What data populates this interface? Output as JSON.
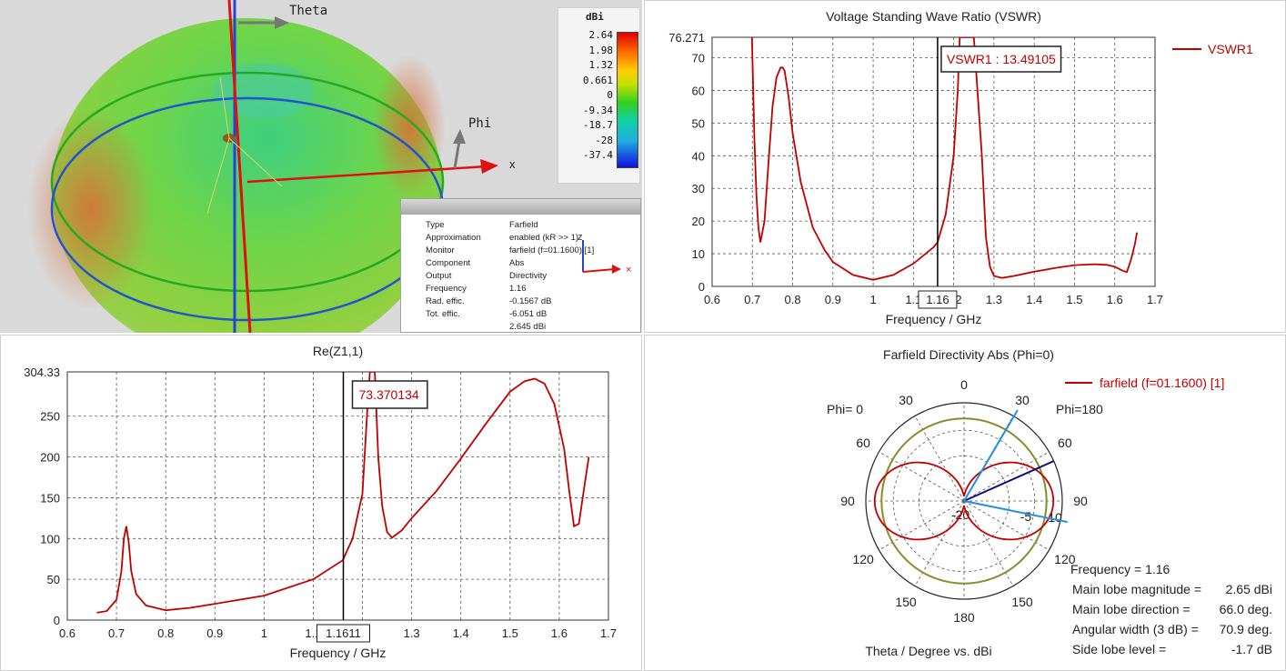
{
  "farfield_3d": {
    "axis_theta": "Theta",
    "axis_phi": "Phi",
    "axis_x": "x",
    "axis_z": "z",
    "legend_unit": "dBi",
    "legend_ticks": [
      "2.64",
      "1.98",
      "1.32",
      "0.661",
      "0",
      "-9.34",
      "-18.7",
      "-28",
      "-37.4"
    ],
    "info": [
      {
        "key": "Type",
        "value": "Farfield"
      },
      {
        "key": "Approximation",
        "value": "enabled (kR >> 1)"
      },
      {
        "key": "Monitor",
        "value": "farfield (f=01.1600) [1]"
      },
      {
        "key": "Component",
        "value": "Abs"
      },
      {
        "key": "Output",
        "value": "Directivity"
      },
      {
        "key": "Frequency",
        "value": "1.16"
      },
      {
        "key": "Rad. effic.",
        "value": "-0.1567 dB"
      },
      {
        "key": "Tot. effic.",
        "value": "-6.051 dB"
      },
      {
        "key": "",
        "value": "2.645 dBi"
      }
    ]
  },
  "chart_data": [
    {
      "type": "line",
      "title": "Voltage Standing Wave Ratio (VSWR)",
      "xlabel": "Frequency / GHz",
      "ylabel": "",
      "xlim": [
        0.6,
        1.7
      ],
      "ylim": [
        0,
        76.271
      ],
      "ymax_label": "76.271",
      "xticks": [
        0.6,
        0.7,
        0.8,
        0.9,
        1,
        1.1,
        1.2,
        1.3,
        1.4,
        1.5,
        1.6,
        1.7
      ],
      "yticks": [
        0,
        10,
        20,
        30,
        40,
        50,
        60,
        70
      ],
      "legend": "VSWR1",
      "marker_x": 1.16,
      "marker_x_label": "1.16",
      "marker_value_label": "VSWR1 : 13.49105",
      "series": [
        {
          "name": "VSWR1",
          "color": "#c00000",
          "x": [
            0.699,
            0.7,
            0.702,
            0.705,
            0.71,
            0.715,
            0.72,
            0.73,
            0.74,
            0.75,
            0.76,
            0.77,
            0.775,
            0.78,
            0.79,
            0.8,
            0.82,
            0.85,
            0.88,
            0.9,
            0.95,
            1.0,
            1.05,
            1.1,
            1.15,
            1.16,
            1.18,
            1.2,
            1.21,
            1.215,
            1.22,
            1.23,
            1.25,
            1.27,
            1.28,
            1.29,
            1.3,
            1.32,
            1.35,
            1.4,
            1.45,
            1.5,
            1.55,
            1.58,
            1.6,
            1.62,
            1.63,
            1.64,
            1.65,
            1.655
          ],
          "y": [
            76.27,
            70,
            60,
            45,
            28,
            18,
            13.5,
            20,
            38,
            55,
            64,
            67,
            67,
            66,
            58,
            47,
            32,
            18,
            11,
            7.5,
            3.5,
            2,
            3.5,
            7,
            12,
            13.5,
            22,
            40,
            60,
            76.27,
            76.27,
            76.27,
            76.27,
            40,
            15,
            6,
            3.2,
            2.6,
            3.2,
            4.5,
            5.6,
            6.5,
            6.8,
            6.6,
            6.0,
            4.8,
            4.4,
            8,
            13,
            16.5
          ]
        }
      ]
    },
    {
      "type": "line",
      "title": "Re(Z1,1)",
      "xlabel": "Frequency / GHz",
      "ylabel": "",
      "xlim": [
        0.6,
        1.7
      ],
      "ylim": [
        0,
        304.33
      ],
      "ymax_label": "304.33",
      "xticks": [
        0.6,
        0.7,
        0.8,
        0.9,
        1,
        1.1,
        1.2,
        1.3,
        1.4,
        1.5,
        1.6,
        1.7
      ],
      "yticks": [
        0,
        50,
        100,
        150,
        200,
        250
      ],
      "marker_x": 1.1611,
      "marker_x_label": "1.1611",
      "marker_value_label": "73.370134",
      "series": [
        {
          "name": "",
          "color": "#c00000",
          "x": [
            0.66,
            0.68,
            0.7,
            0.71,
            0.715,
            0.72,
            0.725,
            0.73,
            0.74,
            0.76,
            0.8,
            0.85,
            0.9,
            1.0,
            1.1,
            1.16,
            1.18,
            1.2,
            1.21,
            1.215,
            1.218,
            1.225,
            1.232,
            1.24,
            1.25,
            1.26,
            1.28,
            1.3,
            1.35,
            1.4,
            1.45,
            1.5,
            1.53,
            1.55,
            1.57,
            1.59,
            1.61,
            1.62,
            1.63,
            1.64,
            1.65,
            1.66
          ],
          "y": [
            9,
            11,
            25,
            60,
            100,
            115,
            95,
            60,
            32,
            18,
            12,
            15,
            20,
            30,
            50,
            73.4,
            100,
            155,
            260,
            304.33,
            304.33,
            304.33,
            200,
            140,
            108,
            101,
            110,
            125,
            158,
            198,
            240,
            280,
            293,
            296,
            290,
            265,
            210,
            160,
            115,
            118,
            160,
            200
          ]
        }
      ]
    },
    {
      "type": "polar",
      "title": "Farfield Directivity Abs (Phi=0)",
      "xlabel": "Theta / Degree vs. dBi",
      "legend": "farfield (f=01.1600) [1]",
      "left_label": "Phi=  0",
      "right_label": "Phi=180",
      "angle_labels": [
        "0",
        "30",
        "60",
        "90",
        "120",
        "150",
        "180",
        "150",
        "120",
        "90",
        "60",
        "30"
      ],
      "radial_labels": [
        "-20",
        "-5",
        "10"
      ],
      "stats": [
        {
          "label": "Frequency",
          "value": "1.16"
        },
        {
          "label": "Main lobe magnitude =",
          "value": "2.65 dBi"
        },
        {
          "label": "Main lobe direction =",
          "value": "66.0 deg."
        },
        {
          "label": "Angular width (3 dB) =",
          "value": "70.9 deg."
        },
        {
          "label": "Side lobe level =",
          "value": "-1.7 dB"
        }
      ],
      "main_lobe_deg": 66.0,
      "beam_edges_deg": [
        30.5,
        101.5
      ]
    }
  ]
}
